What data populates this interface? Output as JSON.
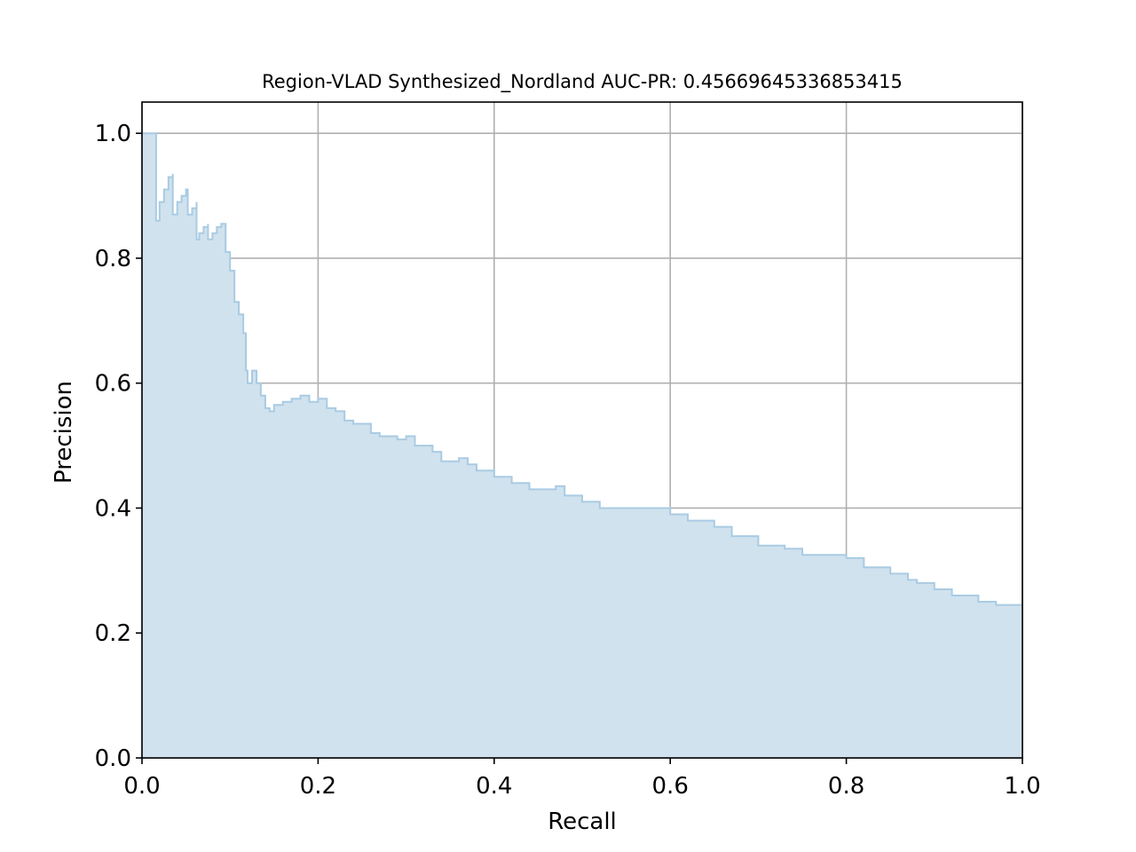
{
  "chart_data": {
    "type": "area",
    "title": "Region-VLAD Synthesized_Nordland AUC-PR: 0.45669645336853415",
    "xlabel": "Recall",
    "ylabel": "Precision",
    "xlim": [
      0.0,
      1.0
    ],
    "ylim": [
      0.0,
      1.05
    ],
    "xticks": [
      0.0,
      0.2,
      0.4,
      0.6,
      0.8,
      1.0
    ],
    "yticks": [
      0.0,
      0.2,
      0.4,
      0.6,
      0.8,
      1.0
    ],
    "xtick_labels": [
      "0.0",
      "0.2",
      "0.4",
      "0.6",
      "0.8",
      "1.0"
    ],
    "ytick_labels": [
      "0.0",
      "0.2",
      "0.4",
      "0.6",
      "0.8",
      "1.0"
    ],
    "grid": true,
    "step": true,
    "colors": {
      "fill": "#d0e2ee",
      "line": "#a9cbe3",
      "grid": "#b0b0b0",
      "axes": "#000000"
    },
    "series": [
      {
        "x": [
          0.0,
          0.016,
          0.016,
          0.02,
          0.025,
          0.03,
          0.035,
          0.035,
          0.04,
          0.045,
          0.05,
          0.052,
          0.052,
          0.057,
          0.062,
          0.062,
          0.065,
          0.07,
          0.075,
          0.075,
          0.08,
          0.085,
          0.09,
          0.095,
          0.1,
          0.105,
          0.11,
          0.115,
          0.118,
          0.12,
          0.125,
          0.13,
          0.135,
          0.14,
          0.145,
          0.15,
          0.16,
          0.17,
          0.18,
          0.19,
          0.2,
          0.21,
          0.22,
          0.23,
          0.24,
          0.26,
          0.27,
          0.29,
          0.3,
          0.31,
          0.33,
          0.34,
          0.36,
          0.37,
          0.38,
          0.4,
          0.42,
          0.44,
          0.46,
          0.47,
          0.48,
          0.5,
          0.52,
          0.55,
          0.58,
          0.6,
          0.62,
          0.65,
          0.67,
          0.7,
          0.73,
          0.75,
          0.78,
          0.8,
          0.82,
          0.85,
          0.87,
          0.88,
          0.9,
          0.92,
          0.95,
          0.97,
          1.0
        ],
        "y": [
          1.0,
          1.0,
          0.86,
          0.89,
          0.91,
          0.93,
          0.935,
          0.87,
          0.89,
          0.9,
          0.91,
          0.91,
          0.87,
          0.88,
          0.89,
          0.83,
          0.84,
          0.85,
          0.855,
          0.83,
          0.84,
          0.85,
          0.855,
          0.81,
          0.78,
          0.73,
          0.71,
          0.68,
          0.62,
          0.6,
          0.62,
          0.6,
          0.58,
          0.56,
          0.555,
          0.565,
          0.57,
          0.575,
          0.58,
          0.57,
          0.575,
          0.56,
          0.555,
          0.54,
          0.535,
          0.52,
          0.515,
          0.51,
          0.515,
          0.5,
          0.49,
          0.475,
          0.48,
          0.47,
          0.46,
          0.45,
          0.44,
          0.43,
          0.43,
          0.435,
          0.42,
          0.41,
          0.4,
          0.4,
          0.4,
          0.39,
          0.38,
          0.37,
          0.355,
          0.34,
          0.335,
          0.325,
          0.325,
          0.32,
          0.305,
          0.295,
          0.285,
          0.28,
          0.27,
          0.26,
          0.25,
          0.245,
          0.24
        ]
      }
    ]
  }
}
